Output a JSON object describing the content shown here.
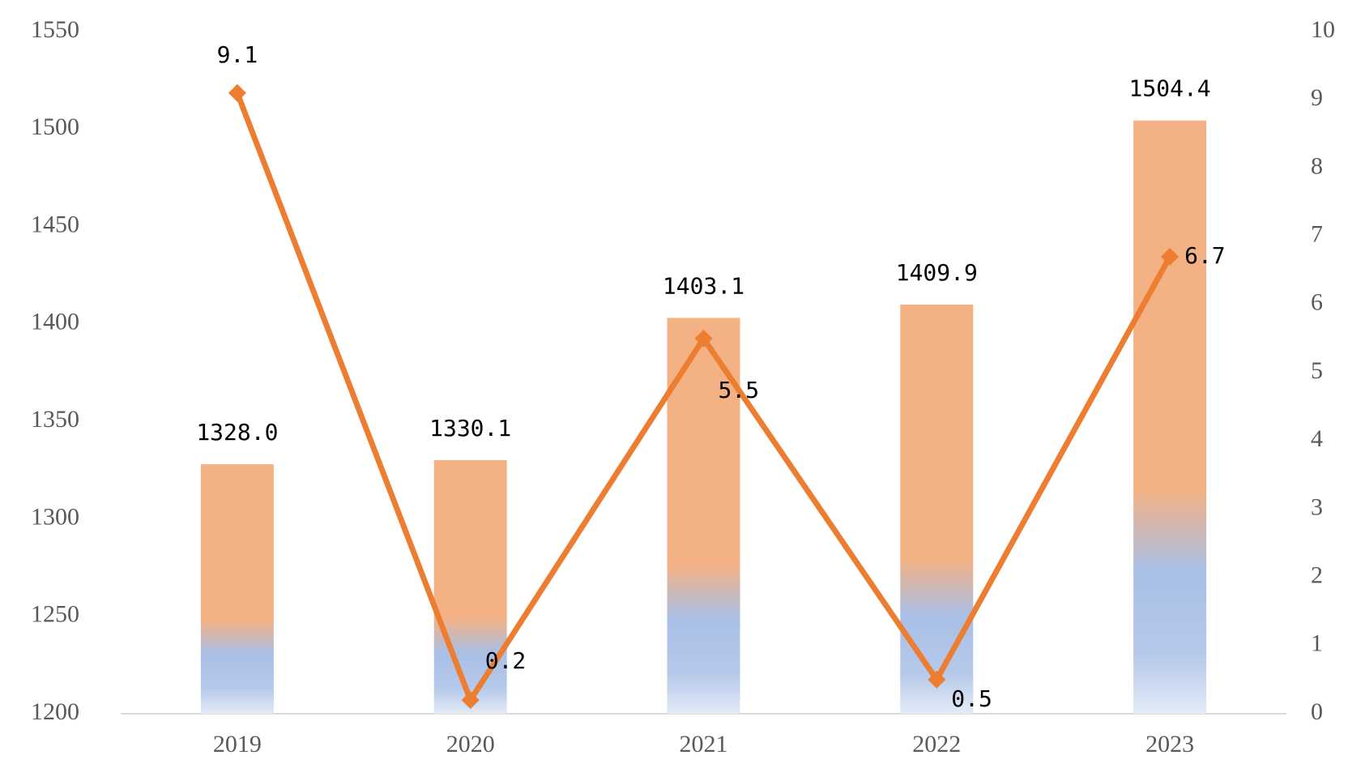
{
  "chart_data": {
    "type": "bar-line",
    "categories": [
      "2019",
      "2020",
      "2021",
      "2022",
      "2023"
    ],
    "series": [
      {
        "type": "bar",
        "color": "#f4b183",
        "color2": "#a9bfe6",
        "values": [
          1328.0,
          1330.1,
          1403.1,
          1409.9,
          1504.4
        ],
        "value_labels": [
          "1328.0",
          "1330.1",
          "1403.1",
          "1409.9",
          "1504.4"
        ]
      },
      {
        "type": "line",
        "axis": "y2",
        "color": "#ed7d31",
        "values": [
          9.1,
          0.2,
          5.5,
          0.5,
          6.7
        ]
      }
    ],
    "ylim": [
      1200,
      1550
    ],
    "yticks": [
      1200,
      1250,
      1300,
      1350,
      1400,
      1450,
      1500,
      1550
    ],
    "y2lim": [
      0,
      10
    ],
    "y2ticks": [
      0,
      1,
      2,
      3,
      4,
      5,
      6,
      7,
      8,
      9,
      10
    ]
  }
}
